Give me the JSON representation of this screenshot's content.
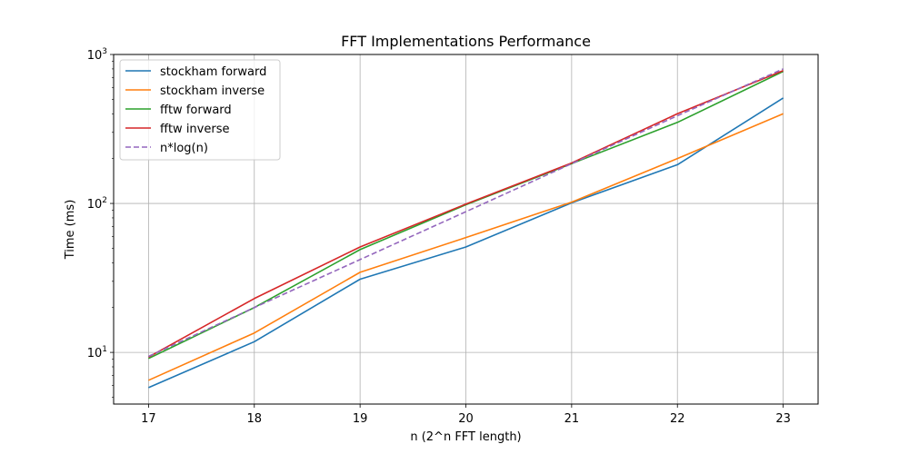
{
  "chart_data": {
    "type": "line",
    "title": "FFT Implementations Performance",
    "xlabel": "n (2^n FFT length)",
    "ylabel": "Time (ms)",
    "yscale": "log",
    "xlim": [
      16.67,
      23.33
    ],
    "ylim": [
      4.5,
      1000
    ],
    "grid": true,
    "legend_position": "top-left",
    "x": [
      17,
      18,
      19,
      20,
      21,
      22,
      23
    ],
    "x_ticks": [
      "17",
      "18",
      "19",
      "20",
      "21",
      "22",
      "23"
    ],
    "y_ticks": [
      {
        "value": 10,
        "base": "10",
        "exp": "1"
      },
      {
        "value": 100,
        "base": "10",
        "exp": "2"
      },
      {
        "value": 1000,
        "base": "10",
        "exp": "3"
      }
    ],
    "series": [
      {
        "name": "stockham forward",
        "color": "#1f77b4",
        "dash": "solid",
        "values": [
          5.8,
          11.8,
          31,
          51,
          101,
          182,
          510
        ]
      },
      {
        "name": "stockham inverse",
        "color": "#ff7f0e",
        "dash": "solid",
        "values": [
          6.5,
          13.5,
          34.5,
          59,
          102,
          200,
          400
        ]
      },
      {
        "name": "fftw forward",
        "color": "#2ca02c",
        "dash": "solid",
        "values": [
          9.1,
          20,
          49,
          98,
          185,
          350,
          770
        ]
      },
      {
        "name": "fftw inverse",
        "color": "#d62728",
        "dash": "solid",
        "values": [
          9.3,
          23,
          51,
          99,
          187,
          400,
          780
        ]
      },
      {
        "name": "n*log(n)",
        "color": "#9467bd",
        "dash": "dashed",
        "values": [
          9.4,
          20,
          42,
          88,
          185,
          388,
          800
        ]
      }
    ]
  }
}
